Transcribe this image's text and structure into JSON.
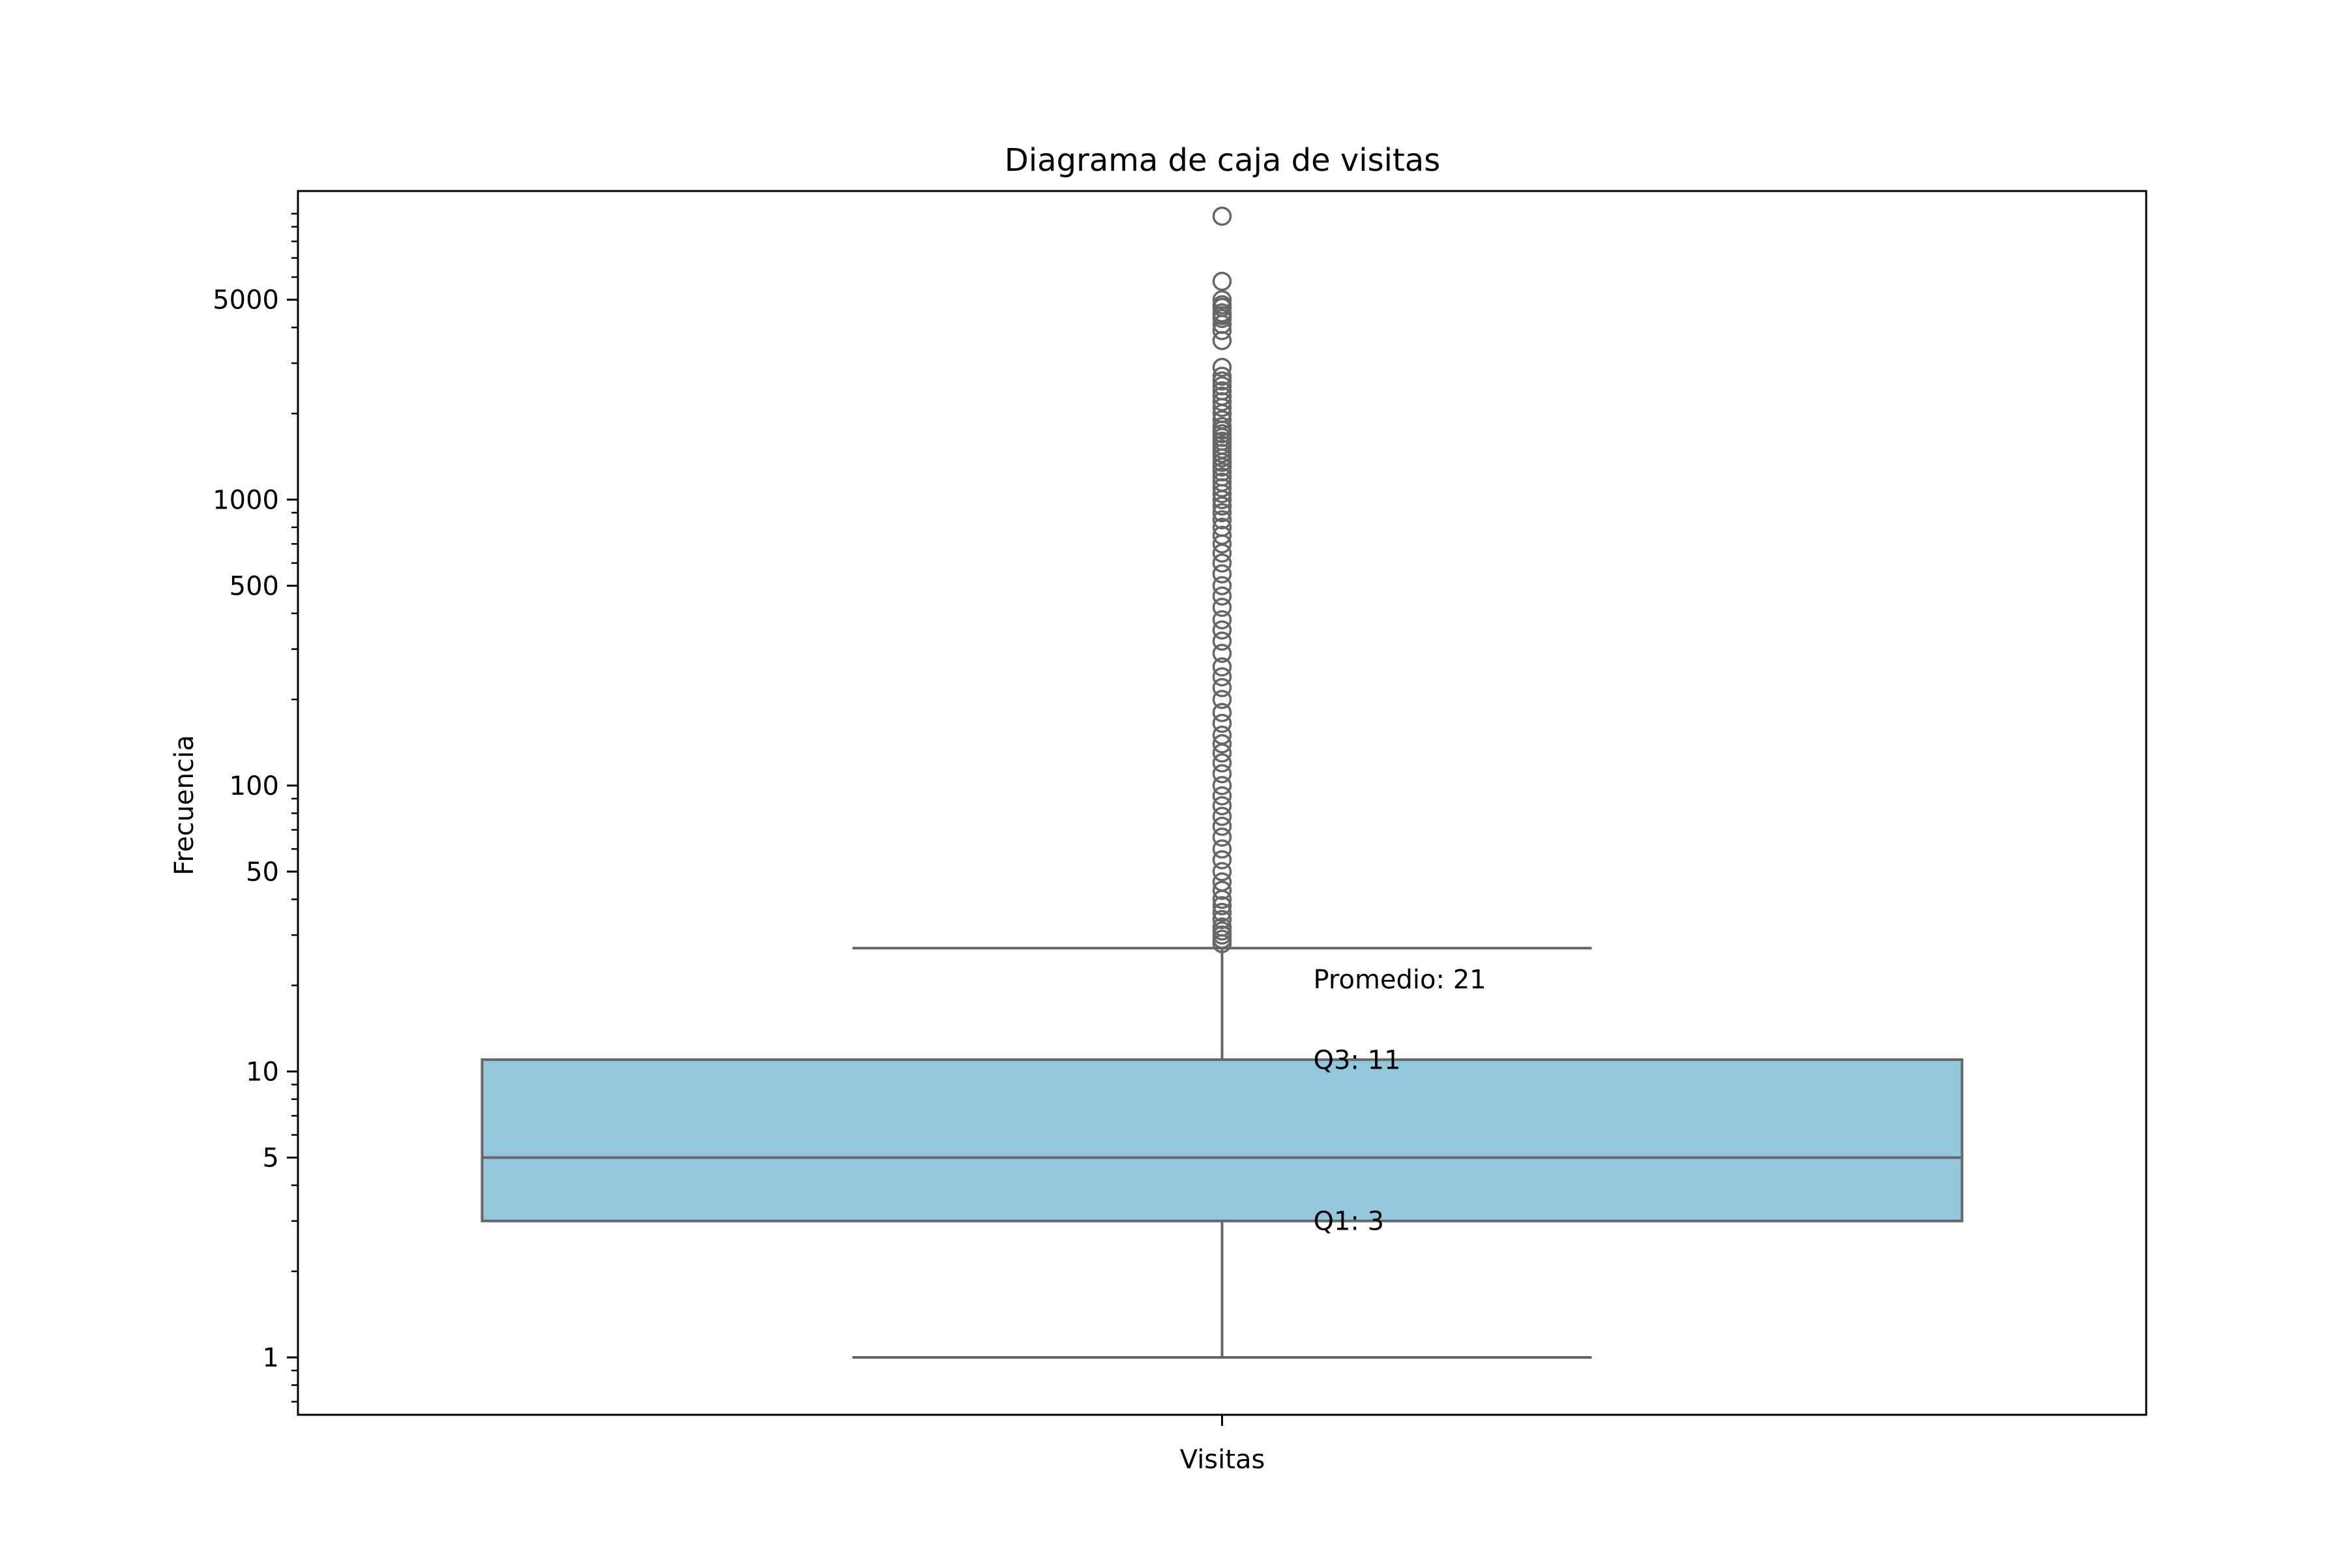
{
  "chart_data": {
    "type": "box",
    "title": "Diagrama de caja de visitas",
    "xlabel": "Visitas",
    "ylabel": "Frecuencia",
    "y_scale": "log",
    "ylim": [
      0.63,
      12000
    ],
    "yticks": [
      {
        "value": 1,
        "label": "1"
      },
      {
        "value": 5,
        "label": "5"
      },
      {
        "value": 10,
        "label": "10"
      },
      {
        "value": 50,
        "label": "50"
      },
      {
        "value": 100,
        "label": "100"
      },
      {
        "value": 500,
        "label": "500"
      },
      {
        "value": 1000,
        "label": "1000"
      },
      {
        "value": 5000,
        "label": "5000"
      }
    ],
    "box_color": "#93c7dd",
    "line_color": "#666666",
    "box": {
      "whisker_low": 1,
      "q1": 3,
      "median": 5,
      "q3": 11,
      "whisker_high": 27
    },
    "outliers": [
      9800,
      5800,
      5000,
      4800,
      4700,
      4500,
      4400,
      4300,
      4100,
      3900,
      3600,
      2900,
      2700,
      2600,
      2500,
      2400,
      2300,
      2200,
      2100,
      2000,
      1900,
      1800,
      1750,
      1700,
      1650,
      1600,
      1550,
      1500,
      1450,
      1400,
      1350,
      1300,
      1250,
      1200,
      1150,
      1100,
      1050,
      1000,
      950,
      900,
      850,
      800,
      750,
      700,
      650,
      600,
      550,
      500,
      460,
      420,
      380,
      350,
      320,
      290,
      260,
      240,
      220,
      200,
      180,
      165,
      150,
      140,
      130,
      120,
      110,
      100,
      92,
      85,
      78,
      72,
      66,
      60,
      55,
      50,
      46,
      43,
      40,
      38,
      36,
      34,
      32,
      31,
      30,
      29,
      28
    ],
    "annotations": [
      {
        "text": "Promedio: 21",
        "value": 21
      },
      {
        "text": "Q3: 11",
        "value": 11
      },
      {
        "text": "Q1: 3",
        "value": 3
      }
    ]
  }
}
